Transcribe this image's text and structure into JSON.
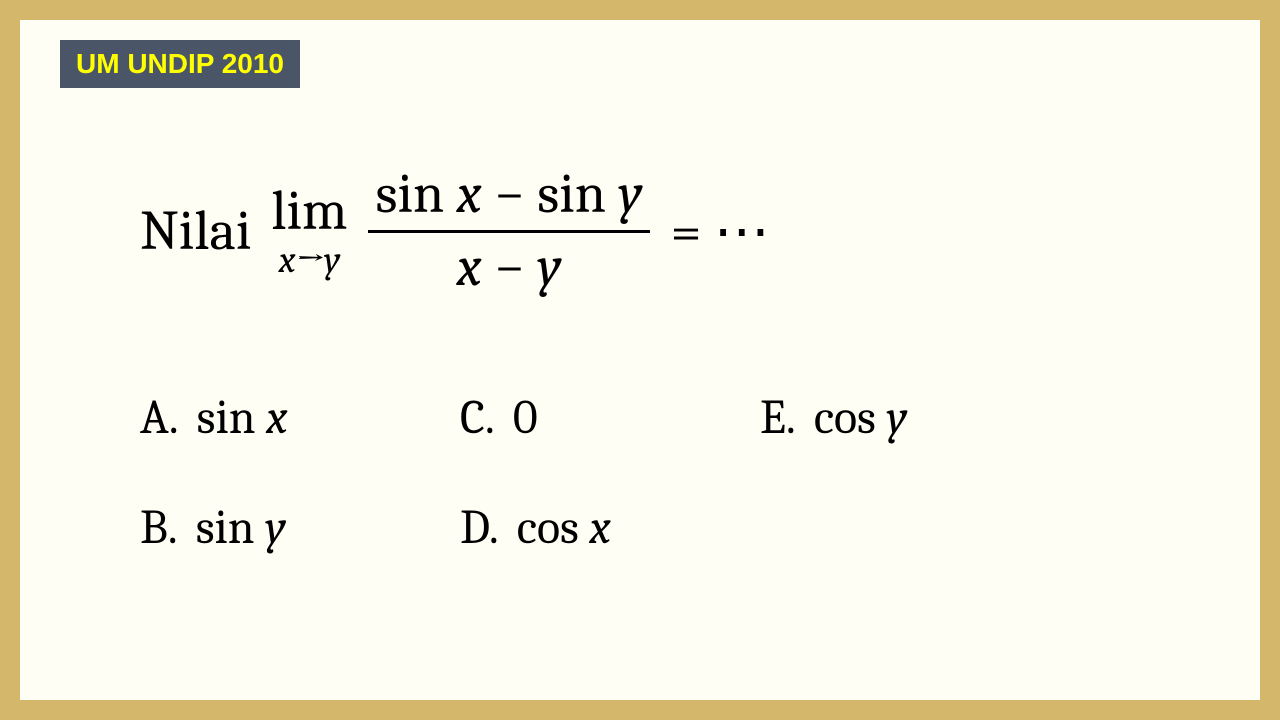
{
  "colors": {
    "outer_bg": "#d4b76a",
    "inner_bg": "#fffef5",
    "tag_bg": "#4a5568",
    "tag_text": "#ffff00",
    "text": "#000000"
  },
  "tag": "UM UNDIP 2010",
  "question": {
    "label": "Nilai",
    "lim_text": "lim",
    "lim_sub_var1": "x",
    "lim_sub_arrow": "→",
    "lim_sub_var2": "y",
    "frac_top_fn1": "sin",
    "frac_top_var1": "x",
    "frac_top_op": " − ",
    "frac_top_fn2": "sin",
    "frac_top_var2": "y",
    "frac_bot_var1": "x",
    "frac_bot_op": " − ",
    "frac_bot_var2": "y",
    "rhs": "= ⋯"
  },
  "options": {
    "A": {
      "label": "A.",
      "fn": "sin",
      "var": "x"
    },
    "B": {
      "label": "B.",
      "fn": "sin",
      "var": "y"
    },
    "C": {
      "label": "C.",
      "text": "0"
    },
    "D": {
      "label": "D.",
      "fn": "cos",
      "var": "x"
    },
    "E": {
      "label": "E.",
      "fn": "cos",
      "var": "y"
    }
  },
  "typography": {
    "tag_fontsize": 28,
    "question_fontsize": 56,
    "limsub_fontsize": 38,
    "option_fontsize": 48
  }
}
